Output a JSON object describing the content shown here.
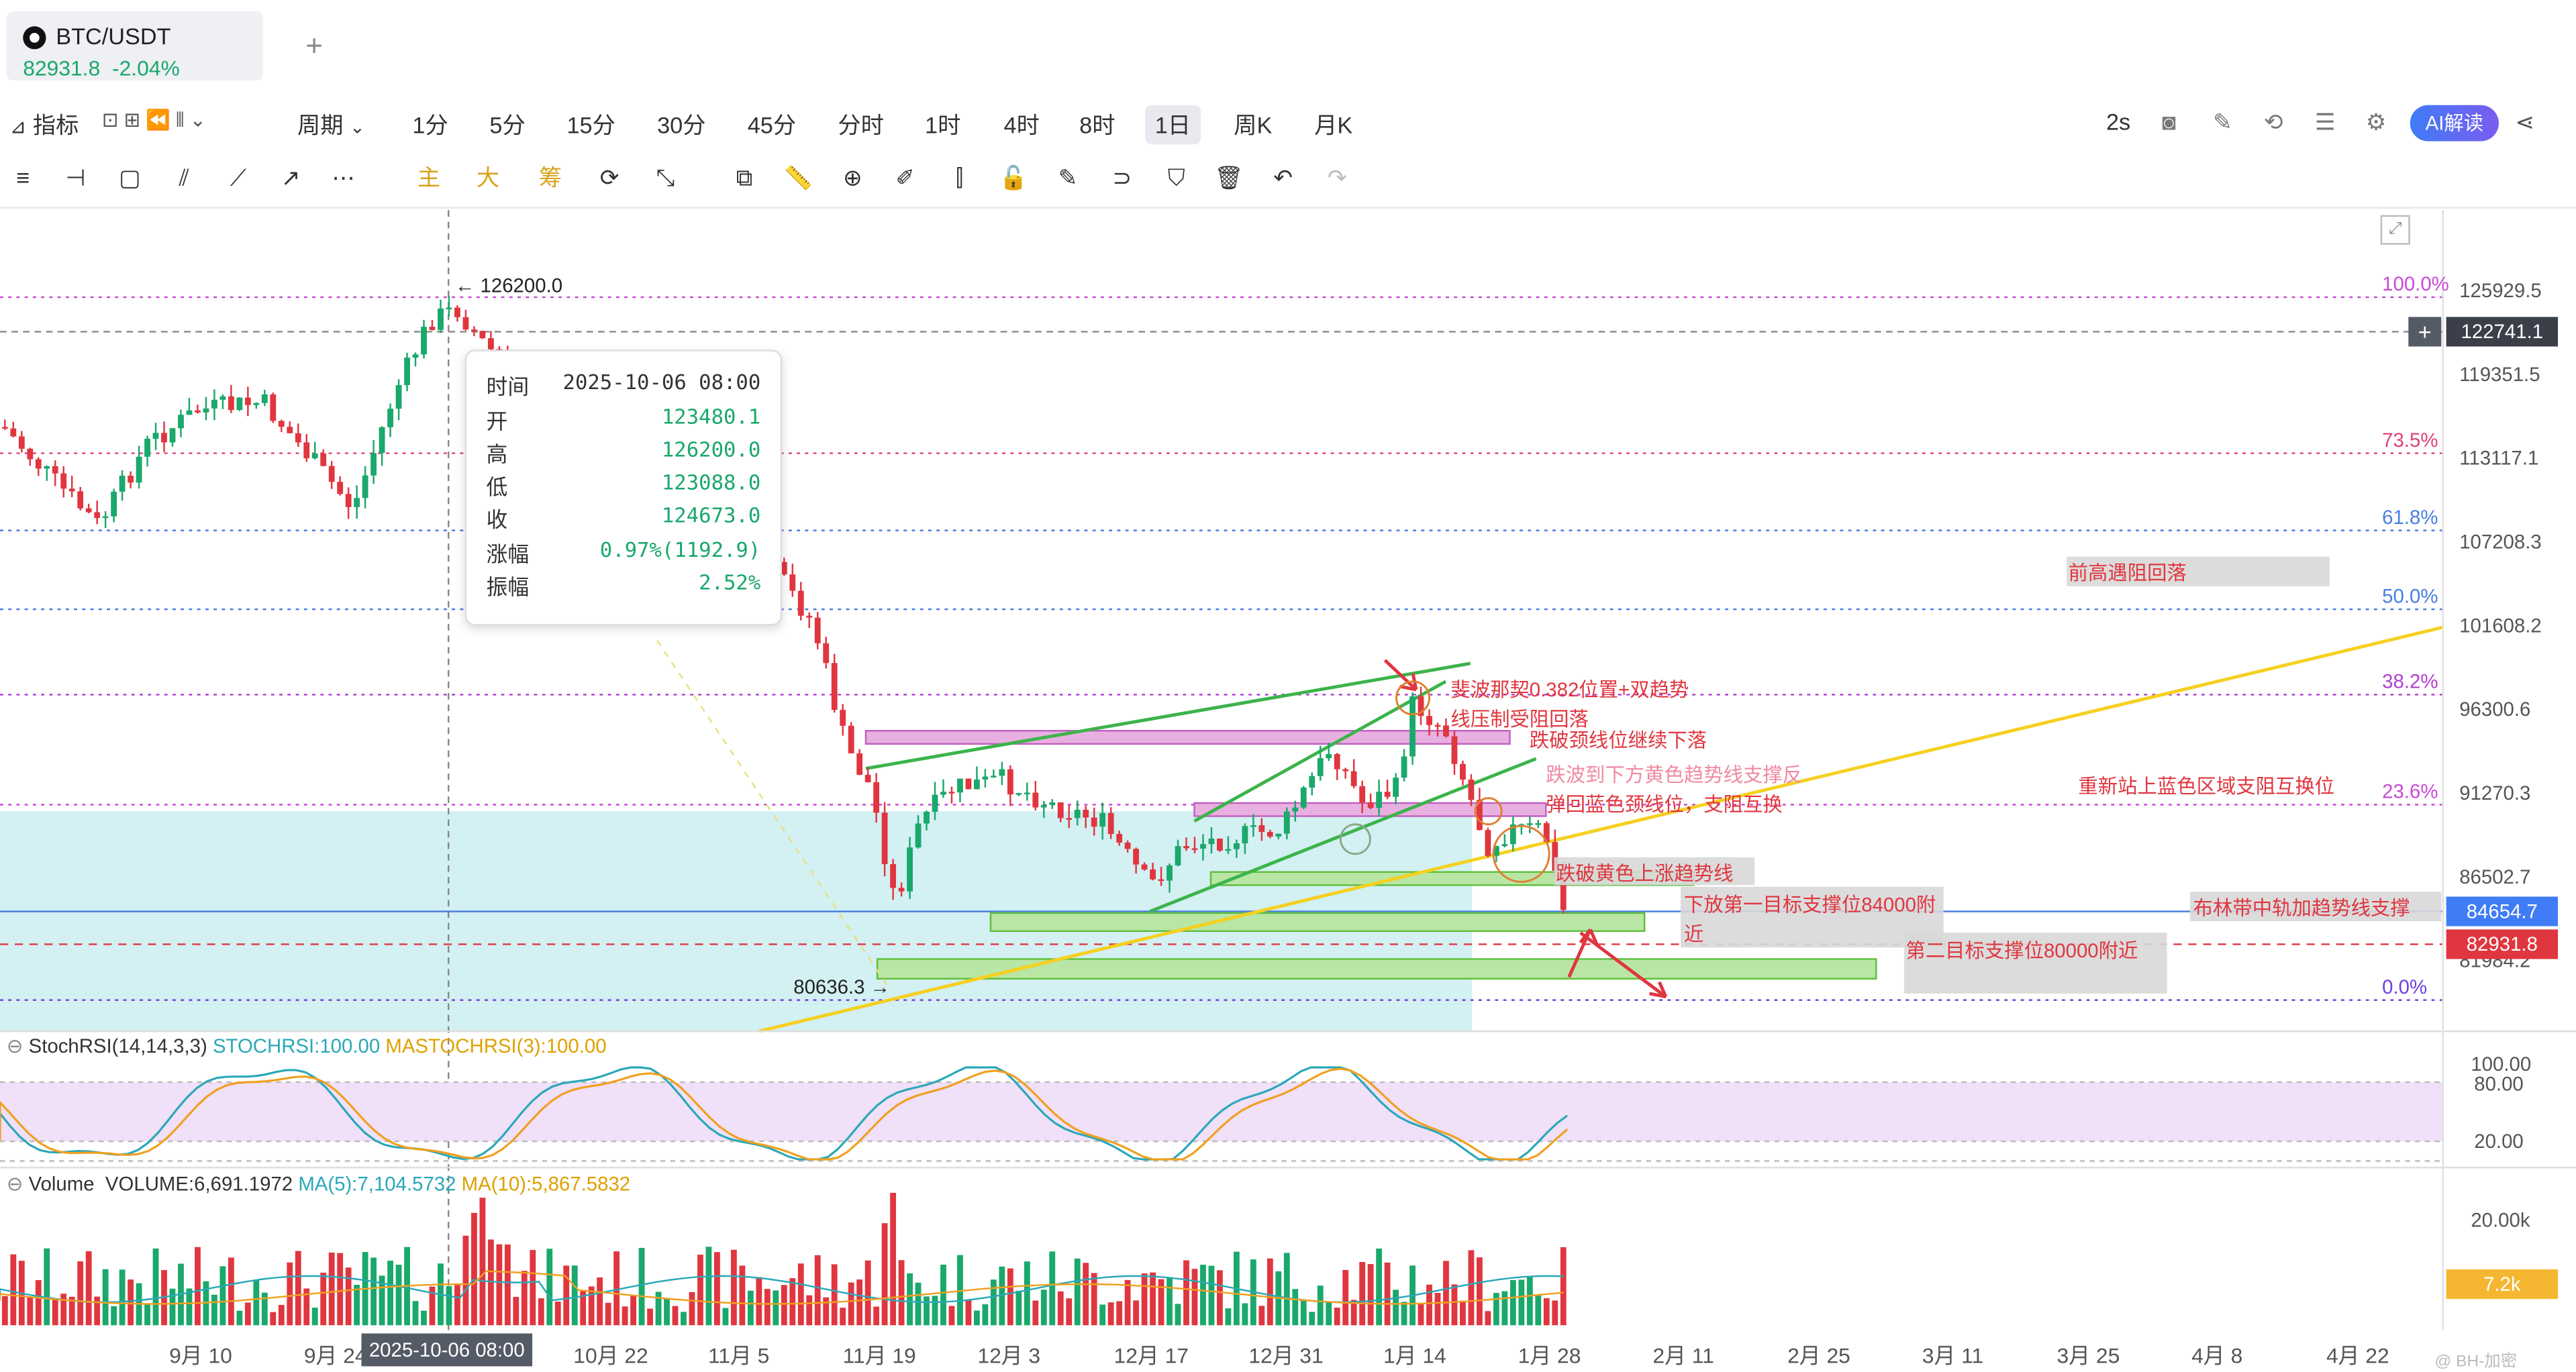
{
  "symbol": {
    "name": "BTC/USDT",
    "price": "82931.8",
    "change": "-2.04%",
    "add": "+"
  },
  "periodbar": {
    "indicator_label": "指标",
    "period_label": "周期",
    "periods": [
      "1分",
      "5分",
      "15分",
      "30分",
      "45分",
      "分时",
      "1时",
      "4时",
      "8时",
      "1日",
      "周K",
      "月K"
    ],
    "active": "1日",
    "refresh": "2s",
    "ai_label": "AI解读"
  },
  "toolbar": {
    "main": "主",
    "big": "大",
    "chip": "筹"
  },
  "price_axis": {
    "labels": [
      "125929.5",
      "119351.5",
      "113117.1",
      "107208.3",
      "101608.2",
      "96300.6",
      "91270.3",
      "86502.7",
      "81984.2"
    ],
    "crosshair": "122741.1",
    "ma_tag": "84654.7",
    "last_tag": "82931.8"
  },
  "fib_levels": [
    {
      "label": "100.0%",
      "color": "#c94ad6"
    },
    {
      "label": "73.5%",
      "color": "#e0407a"
    },
    {
      "label": "61.8%",
      "color": "#4a7ee0"
    },
    {
      "label": "50.0%",
      "color": "#4a7ee0"
    },
    {
      "label": "38.2%",
      "color": "#b040d0"
    },
    {
      "label": "23.6%",
      "color": "#c94ad6"
    },
    {
      "label": "0.0%",
      "color": "#7040e0"
    }
  ],
  "extremes": {
    "high": "← 126200.0",
    "low": "80636.3 →"
  },
  "tooltip": {
    "time_k": "时间",
    "time_v": "2025-10-06 08:00",
    "open_k": "开",
    "open_v": "123480.1",
    "high_k": "高",
    "high_v": "126200.0",
    "low_k": "低",
    "low_v": "123088.0",
    "close_k": "收",
    "close_v": "124673.0",
    "chg_k": "涨幅",
    "chg_v": "0.97%(1192.9)",
    "amp_k": "振幅",
    "amp_v": "2.52%"
  },
  "annotations": {
    "a1": "斐波那契0.382位置+双趋势",
    "a2": "线压制受阻回落",
    "a3": "跌破颈线位继续下落",
    "a4": "跌波到下方黄色趋势线支撑反",
    "a5": "弹回蓝色颈线位，支阻互换",
    "a6": "跌破黄色上涨趋势线",
    "a7": "下放第一目标支撑位84000附",
    "a7b": "近",
    "a8": "第二目标支撑位80000附近",
    "a9": "前高遇阻回落",
    "a10": "重新站上蓝色区域支阻互换位",
    "a11": "布林带中轨加趋势线支撑"
  },
  "stochrsi": {
    "title": "StochRSI(14,14,3,3)",
    "k": "STOCHRSI:100.00",
    "d": "MASTOCHRSI(3):100.00",
    "levels": [
      "100.00",
      "80.00",
      "20.00"
    ]
  },
  "volume": {
    "title": "Volume",
    "vol": "VOLUME:6,691.1972",
    "ma5": "MA(5):7,104.5732",
    "ma10": "MA(10):5,867.5832",
    "axis": "20.00k",
    "tag": "7.2k"
  },
  "x_axis": {
    "labels": [
      "9月 10",
      "9月 24",
      "10月 22",
      "11月 5",
      "11月 19",
      "12月 3",
      "12月 17",
      "12月 31",
      "1月 14",
      "1月 28",
      "2月 11",
      "2月 25",
      "3月 11",
      "3月 25",
      "4月 8",
      "4月 22"
    ],
    "crosshair": "2025-10-06 08:00"
  },
  "watermark": "@ BH-加密",
  "colors": {
    "up": "#1aa86b",
    "down": "#e0363f",
    "accent": "#3f7cf6",
    "zone": "#c8ecf0"
  }
}
